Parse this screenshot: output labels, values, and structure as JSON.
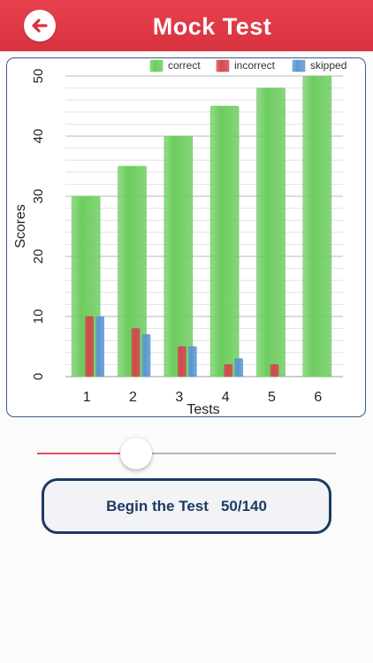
{
  "header": {
    "title": "Mock Test",
    "back_icon": "back-arrow-icon",
    "color": "#e03a46"
  },
  "chart_data": {
    "type": "bar",
    "categories": [
      "1",
      "2",
      "3",
      "4",
      "5",
      "6"
    ],
    "series": [
      {
        "name": "correct",
        "color": "#6ccc5e",
        "values": [
          30,
          35,
          40,
          45,
          48,
          50
        ]
      },
      {
        "name": "incorrect",
        "color": "#d2474d",
        "values": [
          10,
          8,
          5,
          2,
          2,
          0
        ]
      },
      {
        "name": "skipped",
        "color": "#5a95d3",
        "values": [
          10,
          7,
          5,
          3,
          0,
          0
        ]
      }
    ],
    "ylabel": "Scores",
    "xlabel": "Tests",
    "ylim": [
      0,
      50
    ],
    "yticks": [
      0,
      10,
      20,
      30,
      40,
      50
    ],
    "legend_position": "top-right",
    "grid": true
  },
  "slider": {
    "value": 0.33,
    "fill_color": "#e2505a"
  },
  "begin_button": {
    "label": "Begin the Test",
    "count": "50/140",
    "border_color": "#1d3a63"
  }
}
